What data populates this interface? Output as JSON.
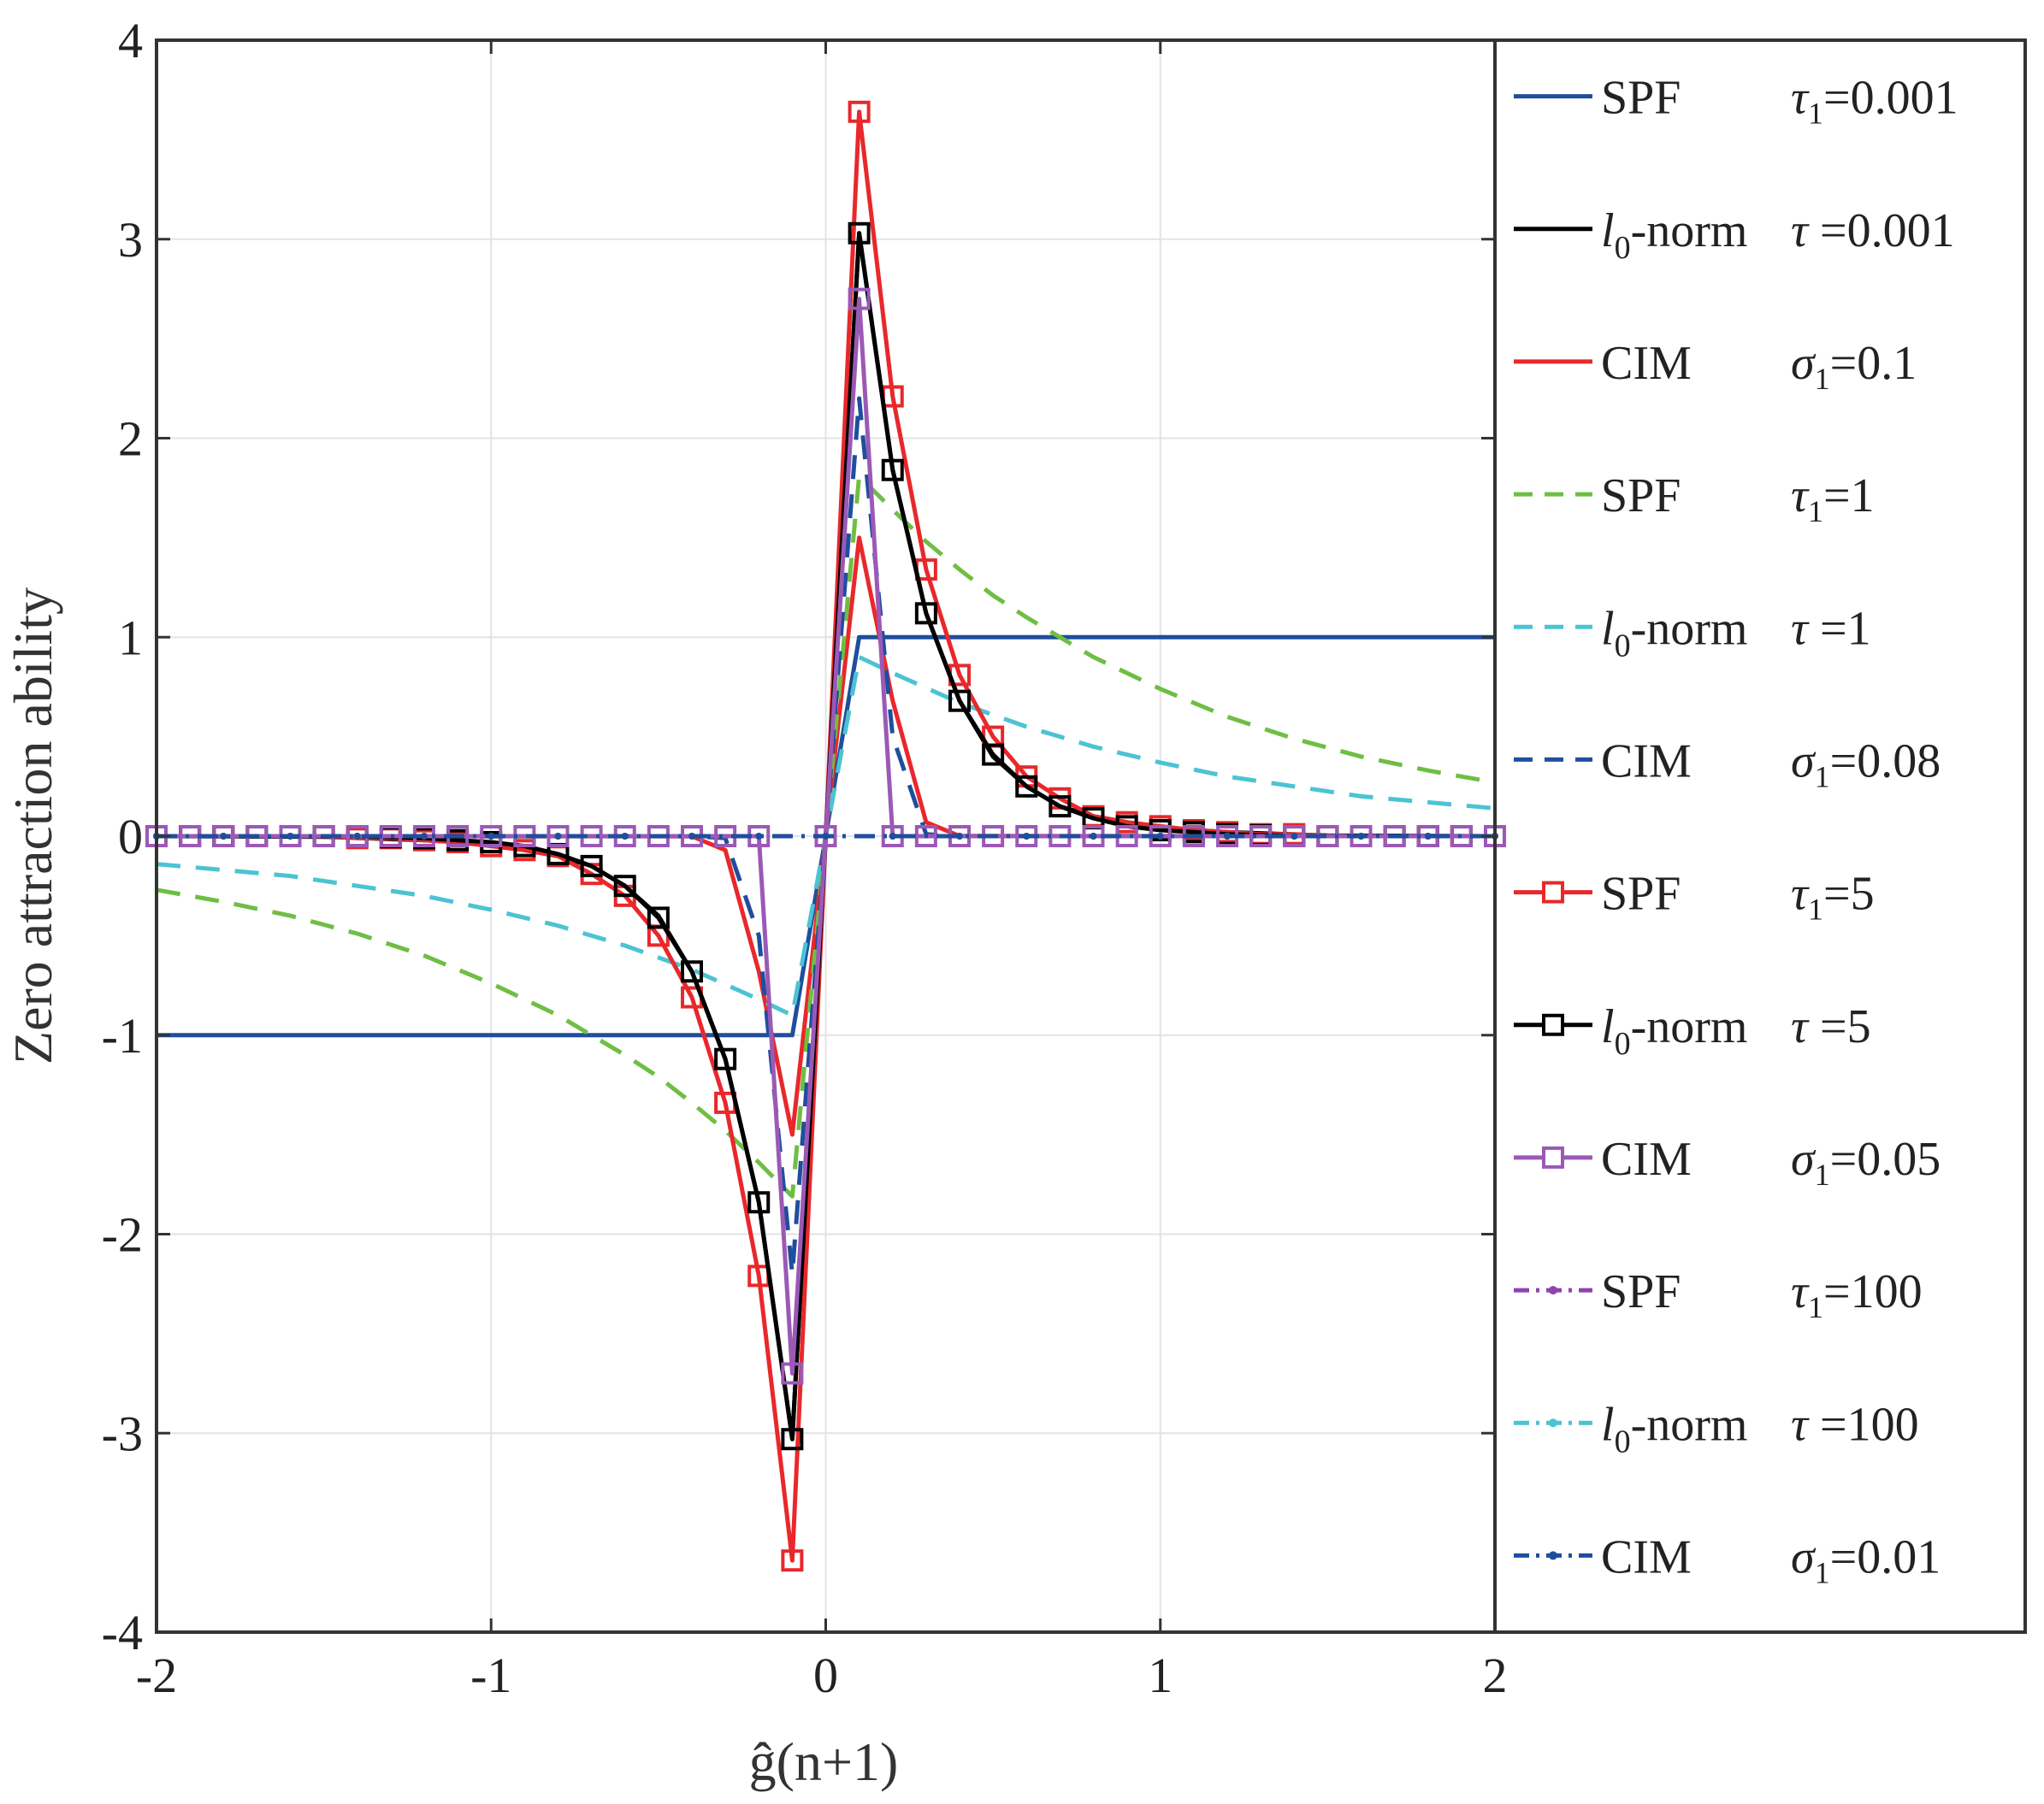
{
  "chart_data": {
    "type": "line",
    "ylabel": "Zero attraction ability",
    "xlabel": "ĝ(n+1)",
    "xlim": [
      -2,
      2
    ],
    "ylim": [
      -4,
      4
    ],
    "grid": true,
    "xticks": [
      -2,
      -1,
      0,
      1,
      2
    ],
    "xtick_labels": [
      "-2",
      "-1",
      "0",
      "1",
      "2"
    ],
    "yticks": [
      4,
      3,
      2,
      1,
      0,
      -1,
      -2,
      -3,
      -4
    ],
    "ytick_labels": [
      "4",
      "3",
      "2",
      "1",
      "0",
      "-1",
      "-2",
      "-3",
      "-4"
    ],
    "legend_position": "right (outside, boxed)",
    "series": [
      {
        "name": "SPF",
        "param_symbol": "τ₁",
        "param": "τ₁=0.001",
        "param_value": "=0.001",
        "color": "#1f4e9c",
        "dash": "solid",
        "marker": "none",
        "x": [
          -2,
          -0.1,
          0.1,
          2
        ],
        "y": [
          -1,
          -1,
          1,
          1
        ]
      },
      {
        "name": "l0-norm",
        "display_name": "-norm",
        "param_symbol": "τ",
        "param": "τ =0.001",
        "param_value": "=0.001",
        "color": "#000000",
        "dash": "solid",
        "marker": "none",
        "x": [
          -2,
          -1.5,
          -1.2,
          -1.0,
          -0.9,
          -0.8,
          -0.7,
          -0.6,
          -0.5,
          -0.4,
          -0.3,
          -0.2,
          -0.1,
          0,
          0.1,
          0.2,
          0.3,
          0.4,
          0.5,
          0.6,
          0.7,
          0.8,
          0.9,
          1.0,
          1.2,
          1.5,
          2
        ],
        "y": [
          0,
          -0.003,
          -0.02,
          -0.04,
          -0.07,
          -0.1,
          -0.15,
          -0.25,
          -0.4,
          -0.68,
          -1.12,
          -1.84,
          -3.03,
          0,
          3.03,
          1.84,
          1.12,
          0.68,
          0.4,
          0.25,
          0.15,
          0.1,
          0.07,
          0.04,
          0.02,
          0.003,
          0
        ]
      },
      {
        "name": "CIM",
        "param_symbol": "σ₁",
        "param": "σ₁=0.1",
        "param_value": "=0.1",
        "color": "#e8282b",
        "dash": "solid",
        "marker": "none",
        "x": [
          -2,
          -0.4,
          -0.3,
          -0.2,
          -0.1,
          0,
          0.1,
          0.2,
          0.3,
          0.4,
          2
        ],
        "y": [
          0,
          -0.001,
          -0.07,
          -0.68,
          -1.5,
          0,
          1.5,
          0.68,
          0.07,
          0.001,
          0
        ]
      },
      {
        "name": "SPF",
        "param_symbol": "τ₁",
        "param": "τ₁=1",
        "param_value": "=1",
        "color": "#6fbe44",
        "dash": "dashed",
        "marker": "none",
        "x": [
          -2,
          -1.8,
          -1.6,
          -1.4,
          -1.2,
          -1.0,
          -0.8,
          -0.7,
          -0.6,
          -0.5,
          -0.4,
          -0.3,
          -0.2,
          -0.1,
          0,
          0.1,
          0.2,
          0.3,
          0.4,
          0.5,
          0.6,
          0.7,
          0.8,
          1.0,
          1.2,
          1.4,
          1.6,
          1.8,
          2
        ],
        "y": [
          -0.27,
          -0.33,
          -0.4,
          -0.49,
          -0.6,
          -0.74,
          -0.9,
          -1.0,
          -1.1,
          -1.21,
          -1.34,
          -1.48,
          -1.64,
          -1.81,
          0,
          1.81,
          1.64,
          1.48,
          1.34,
          1.21,
          1.1,
          1.0,
          0.9,
          0.74,
          0.6,
          0.49,
          0.4,
          0.33,
          0.27
        ]
      },
      {
        "name": "l0-norm",
        "display_name": "-norm",
        "param_symbol": "τ",
        "param": "τ =1",
        "param_value": "=1",
        "color": "#4cc3d3",
        "dash": "dashed",
        "marker": "none",
        "x": [
          -2,
          -1.8,
          -1.6,
          -1.4,
          -1.2,
          -1.0,
          -0.8,
          -0.6,
          -0.4,
          -0.2,
          -0.1,
          0,
          0.1,
          0.2,
          0.4,
          0.6,
          0.8,
          1.0,
          1.2,
          1.4,
          1.6,
          1.8,
          2
        ],
        "y": [
          -0.14,
          -0.17,
          -0.2,
          -0.25,
          -0.3,
          -0.37,
          -0.45,
          -0.55,
          -0.67,
          -0.82,
          -0.9,
          0,
          0.9,
          0.82,
          0.67,
          0.55,
          0.45,
          0.37,
          0.3,
          0.25,
          0.2,
          0.17,
          0.14
        ]
      },
      {
        "name": "CIM",
        "param_symbol": "σ₁",
        "param": "σ₁=0.08",
        "param_value": "=0.08",
        "color": "#1f4e9c",
        "dash": "dashed",
        "marker": "none",
        "x": [
          -2,
          -0.4,
          -0.3,
          -0.2,
          -0.1,
          0,
          0.1,
          0.2,
          0.3,
          0.4,
          2
        ],
        "y": [
          0,
          0,
          -0.01,
          -0.5,
          -2.2,
          0,
          2.2,
          0.5,
          0.01,
          0,
          0
        ]
      },
      {
        "name": "SPF",
        "param_symbol": "τ₁",
        "param": "τ₁=5",
        "param_value": "=5",
        "color": "#e8282b",
        "dash": "solid",
        "marker": "square",
        "x": [
          -2,
          -1.9,
          -1.8,
          -1.7,
          -1.6,
          -1.5,
          -1.4,
          -1.3,
          -1.2,
          -1.1,
          -1.0,
          -0.9,
          -0.8,
          -0.7,
          -0.6,
          -0.5,
          -0.4,
          -0.3,
          -0.2,
          -0.1,
          0,
          0.1,
          0.2,
          0.3,
          0.4,
          0.5,
          0.6,
          0.7,
          0.8,
          0.9,
          1.0,
          1.1,
          1.2,
          1.3,
          1.4,
          1.5,
          1.6,
          1.7,
          1.8,
          1.9,
          2
        ],
        "y": [
          0,
          0,
          0,
          0,
          0,
          0,
          -0.01,
          -0.01,
          -0.02,
          -0.03,
          -0.05,
          -0.07,
          -0.1,
          -0.19,
          -0.3,
          -0.5,
          -0.81,
          -1.34,
          -2.21,
          -3.64,
          0,
          3.64,
          2.21,
          1.34,
          0.81,
          0.5,
          0.3,
          0.19,
          0.1,
          0.07,
          0.05,
          0.03,
          0.02,
          0.01,
          0.01,
          0,
          0,
          0,
          0,
          0,
          0
        ]
      },
      {
        "name": "l0-norm",
        "display_name": "-norm",
        "param_symbol": "τ",
        "param": "τ =5",
        "param_value": "=5",
        "color": "#000000",
        "dash": "solid",
        "marker": "square",
        "x": [
          -2,
          -1.9,
          -1.8,
          -1.7,
          -1.6,
          -1.5,
          -1.4,
          -1.3,
          -1.2,
          -1.1,
          -1.0,
          -0.9,
          -0.8,
          -0.7,
          -0.6,
          -0.5,
          -0.4,
          -0.3,
          -0.2,
          -0.1,
          0,
          0.1,
          0.2,
          0.3,
          0.4,
          0.5,
          0.6,
          0.7,
          0.8,
          0.9,
          1.0,
          1.1,
          1.2,
          1.3,
          1.4,
          1.5,
          1.6,
          1.7,
          1.8,
          1.9,
          2
        ],
        "y": [
          0,
          0,
          0,
          0,
          0,
          0,
          0,
          -0.005,
          -0.01,
          -0.02,
          -0.03,
          -0.05,
          -0.09,
          -0.15,
          -0.25,
          -0.41,
          -0.68,
          -1.12,
          -1.84,
          -3.03,
          0,
          3.03,
          1.84,
          1.12,
          0.68,
          0.41,
          0.25,
          0.15,
          0.09,
          0.05,
          0.03,
          0.02,
          0.01,
          0.005,
          0,
          0,
          0,
          0,
          0,
          0,
          0
        ]
      },
      {
        "name": "CIM",
        "param_symbol": "σ₁",
        "param": "σ₁=0.05",
        "param_value": "=0.05",
        "color": "#9b59b6",
        "dash": "solid",
        "marker": "square",
        "x": [
          -2,
          -1.9,
          -1.8,
          -1.7,
          -1.6,
          -1.5,
          -1.4,
          -1.3,
          -1.2,
          -1.1,
          -1.0,
          -0.9,
          -0.8,
          -0.7,
          -0.6,
          -0.5,
          -0.4,
          -0.3,
          -0.2,
          -0.1,
          0,
          0.1,
          0.2,
          0.3,
          0.4,
          0.5,
          0.6,
          0.7,
          0.8,
          0.9,
          1.0,
          1.1,
          1.2,
          1.3,
          1.4,
          1.5,
          1.6,
          1.7,
          1.8,
          1.9,
          2
        ],
        "y": [
          0,
          0,
          0,
          0,
          0,
          0,
          0,
          0,
          0,
          0,
          0,
          0,
          0,
          0,
          0,
          0,
          0,
          0,
          0,
          -2.7,
          0,
          2.7,
          0,
          0,
          0,
          0,
          0,
          0,
          0,
          0,
          0,
          0,
          0,
          0,
          0,
          0,
          0,
          0,
          0,
          0,
          0
        ]
      },
      {
        "name": "SPF",
        "param_symbol": "τ₁",
        "param": "τ₁=100",
        "param_value": "=100",
        "color": "#8e44ad",
        "dash": "dashdot",
        "marker": "dot",
        "x": [
          -2,
          -1.8,
          -1.6,
          -1.4,
          -1.2,
          -1.0,
          -0.8,
          -0.6,
          -0.4,
          -0.2,
          0,
          0.2,
          0.4,
          0.6,
          0.8,
          1.0,
          1.2,
          1.4,
          1.6,
          1.8,
          2
        ],
        "y": [
          0,
          0,
          0,
          0,
          0,
          0,
          0,
          0,
          0,
          0,
          0,
          0,
          0,
          0,
          0,
          0,
          0,
          0,
          0,
          0,
          0
        ]
      },
      {
        "name": "l0-norm",
        "display_name": "-norm",
        "param_symbol": "τ",
        "param": "τ =100",
        "param_value": "=100",
        "color": "#4cc3d3",
        "dash": "dashdot",
        "marker": "dot",
        "x": [
          -2,
          -1.8,
          -1.6,
          -1.4,
          -1.2,
          -1.0,
          -0.8,
          -0.6,
          -0.4,
          -0.2,
          0,
          0.2,
          0.4,
          0.6,
          0.8,
          1.0,
          1.2,
          1.4,
          1.6,
          1.8,
          2
        ],
        "y": [
          0,
          0,
          0,
          0,
          0,
          0,
          0,
          0,
          0,
          0,
          0,
          0,
          0,
          0,
          0,
          0,
          0,
          0,
          0,
          0,
          0
        ]
      },
      {
        "name": "CIM",
        "param_symbol": "σ₁",
        "param": "σ₁=0.01",
        "param_value": "=0.01",
        "color": "#1f4e9c",
        "dash": "dashdot",
        "marker": "dot",
        "x": [
          -2,
          -1.8,
          -1.6,
          -1.4,
          -1.2,
          -1.0,
          -0.8,
          -0.6,
          -0.4,
          -0.2,
          0,
          0.2,
          0.4,
          0.6,
          0.8,
          1.0,
          1.2,
          1.4,
          1.6,
          1.8,
          2
        ],
        "y": [
          0,
          0,
          0,
          0,
          0,
          0,
          0,
          0,
          0,
          0,
          0,
          0,
          0,
          0,
          0,
          0,
          0,
          0,
          0,
          0,
          0
        ]
      }
    ]
  }
}
